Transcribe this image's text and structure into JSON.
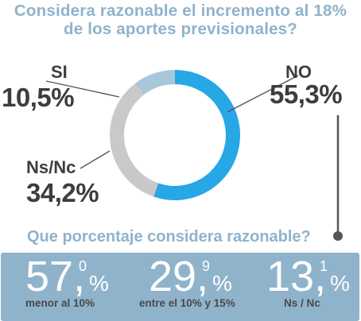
{
  "title": {
    "line1": "Considera razonable el incremento al 18%",
    "line2": "de los aportes previsionales?"
  },
  "chart_data": {
    "type": "pie",
    "donut": true,
    "title": "Considera razonable el incremento al 18% de los aportes previsionales?",
    "slices": [
      {
        "label": "NO",
        "value": 55.3,
        "display": "55,3%",
        "color": "#28a7e6"
      },
      {
        "label": "Ns/Nc",
        "value": 34.2,
        "display": "34,2%",
        "color": "#c9c9c9"
      },
      {
        "label": "SI",
        "value": 10.5,
        "display": "10,5%",
        "color": "#a9c7db"
      }
    ]
  },
  "question": "Que porcentaje considera razonable?",
  "stats": [
    {
      "int": "57,",
      "dec": "0",
      "pct": "%",
      "caption": "menor al 10%"
    },
    {
      "int": "29,",
      "dec": "9",
      "pct": "%",
      "caption": "entre el 10% y 15%"
    },
    {
      "int": "13,",
      "dec": "1",
      "pct": "%",
      "caption": "Ns / Nc"
    }
  ],
  "colors": {
    "title": "#8fb3cb",
    "panel": "#8fb3cb",
    "label": "#3d3d3d",
    "leader": "#555555"
  }
}
